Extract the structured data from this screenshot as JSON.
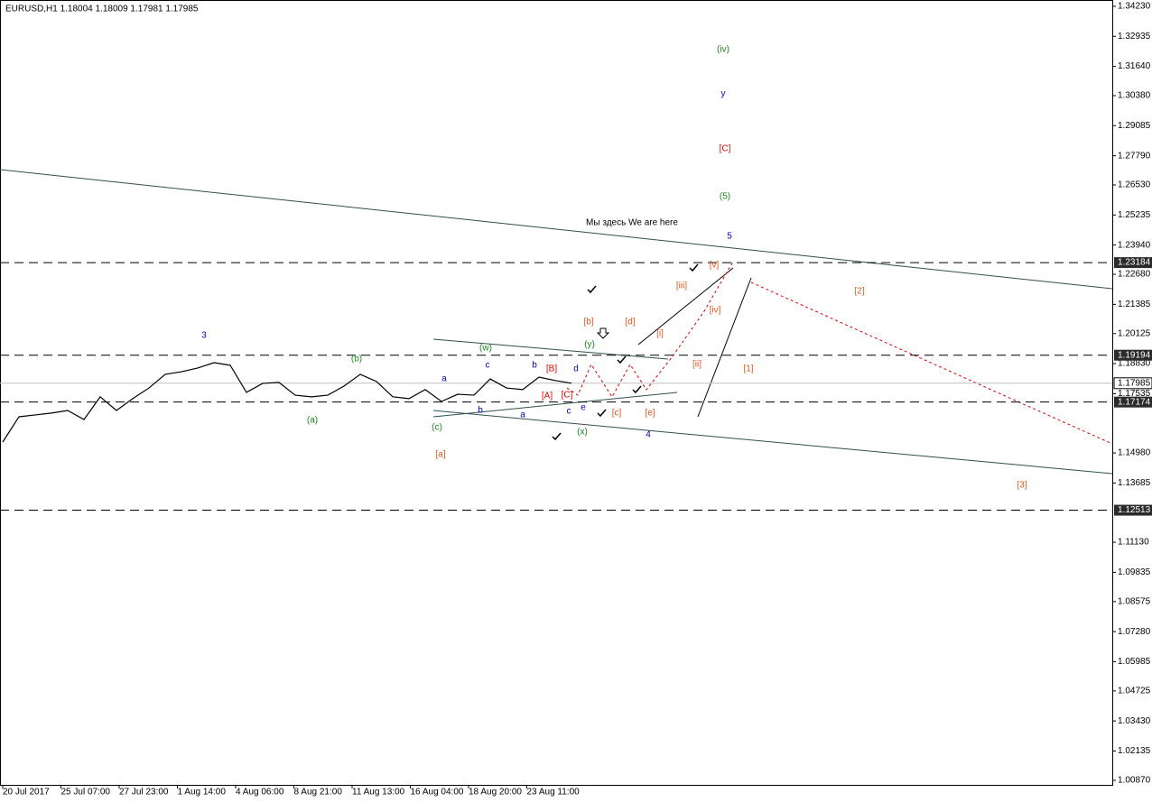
{
  "chart_data": {
    "type": "line",
    "title": "EURUSD,H1  1.18004 1.18009 1.17981 1.17985",
    "color": "#000000",
    "values": [
      1.1545,
      1.1654,
      1.1662,
      1.167,
      1.1681,
      1.1642,
      1.174,
      1.1681,
      1.1732,
      1.1778,
      1.1837,
      1.1848,
      1.1864,
      1.1887,
      1.1876,
      1.1759,
      1.1798,
      1.1802,
      1.1747,
      1.174,
      1.1747,
      1.1786,
      1.1837,
      1.1806,
      1.174,
      1.1732,
      1.1771,
      1.172,
      1.1751,
      1.1747,
      1.1817,
      1.1778,
      1.1771,
      1.1825,
      1.181,
      1.17985
    ],
    "x_tick_labels": [
      "20 Jul 2017",
      "25 Jul 07:00",
      "27 Jul 23:00",
      "1 Aug 14:00",
      "4 Aug 06:00",
      "8 Aug 21:00",
      "11 Aug 13:00",
      "16 Aug 04:00",
      "18 Aug 20:00",
      "23 Aug 11:00"
    ],
    "ylim": [
      1.00675,
      1.34502
    ],
    "yticks": [
      {
        "value": 1.3423,
        "label": "1.34230"
      },
      1.32935,
      {
        "value": 1.3164,
        "label": "1.31640"
      },
      {
        "value": 1.3038,
        "label": "1.30380"
      },
      1.29085,
      {
        "value": 1.2779,
        "label": "1.27790"
      },
      {
        "value": 1.2653,
        "label": "1.26530"
      },
      1.25235,
      {
        "value": 1.2394,
        "label": "1.23940"
      },
      {
        "value": 1.2268,
        "label": "1.22680"
      },
      1.21385,
      1.20125,
      {
        "value": 1.1883,
        "label": "1.18830"
      },
      1.17535,
      {
        "value": 1.1498,
        "label": "1.14980"
      },
      1.13685,
      {
        "value": 1.1113,
        "label": "1.11130"
      },
      1.09835,
      1.08575,
      {
        "value": 1.0728,
        "label": "1.07280"
      },
      1.05985,
      1.04725,
      {
        "value": 1.0343,
        "label": "1.03430"
      },
      1.02135,
      {
        "value": 1.0087,
        "label": "1.00870"
      }
    ],
    "levels": [
      1.23184,
      1.19194,
      1.17174,
      1.12513
    ],
    "current_price": 1.17985,
    "annotations": [
      {
        "text": "(iv)",
        "color": "#1a8a1a"
      },
      {
        "text": "(5)",
        "color": "#1a8a1a"
      },
      {
        "text": "(b)",
        "color": "#1a8a1a"
      },
      {
        "text": "(a)",
        "color": "#1a8a1a"
      },
      {
        "text": "(w)",
        "color": "#1a8a1a"
      },
      {
        "text": "(y)",
        "color": "#1a8a1a"
      },
      {
        "text": "(c)",
        "color": "#1a8a1a"
      },
      {
        "text": "(x)",
        "color": "#1a8a1a"
      },
      {
        "text": "y",
        "color": "#0000cc"
      },
      {
        "text": "5",
        "color": "#0000cc"
      },
      {
        "text": "3",
        "color": "#0000cc"
      },
      {
        "text": "4",
        "color": "#0000cc"
      },
      {
        "text": "a",
        "color": "#0000cc"
      },
      {
        "text": "c",
        "color": "#0000cc"
      },
      {
        "text": "b",
        "color": "#0000cc"
      },
      {
        "text": "d",
        "color": "#0000cc"
      },
      {
        "text": "b",
        "color": "#0000cc"
      },
      {
        "text": "a",
        "color": "#0000cc"
      },
      {
        "text": "c",
        "color": "#0000cc"
      },
      {
        "text": "e",
        "color": "#0000cc"
      },
      {
        "text": "[C]",
        "color": "#e00000"
      },
      {
        "text": "[B]",
        "color": "#e00000"
      },
      {
        "text": "[A]",
        "color": "#e00000"
      },
      {
        "text": "[C]",
        "color": "#e00000"
      },
      {
        "text": "[2]",
        "color": "#e8561f"
      },
      {
        "text": "[1]",
        "color": "#e8561f"
      },
      {
        "text": "[3]",
        "color": "#e8561f"
      },
      {
        "text": "[a]",
        "color": "#e8561f"
      },
      {
        "text": "[b]",
        "color": "#e8561f"
      },
      {
        "text": "[d]",
        "color": "#e8561f"
      },
      {
        "text": "[i]",
        "color": "#e8561f"
      },
      {
        "text": "[ii]",
        "color": "#e8561f"
      },
      {
        "text": "[iii]",
        "color": "#e8561f"
      },
      {
        "text": "[iv]",
        "color": "#e8561f"
      },
      {
        "text": "[v]",
        "color": "#e8561f"
      },
      {
        "text": "[c]",
        "color": "#e8561f"
      },
      {
        "text": "[e]",
        "color": "#e8561f"
      },
      {
        "text": "Мы здесь We are here",
        "color": "#000000"
      }
    ]
  }
}
